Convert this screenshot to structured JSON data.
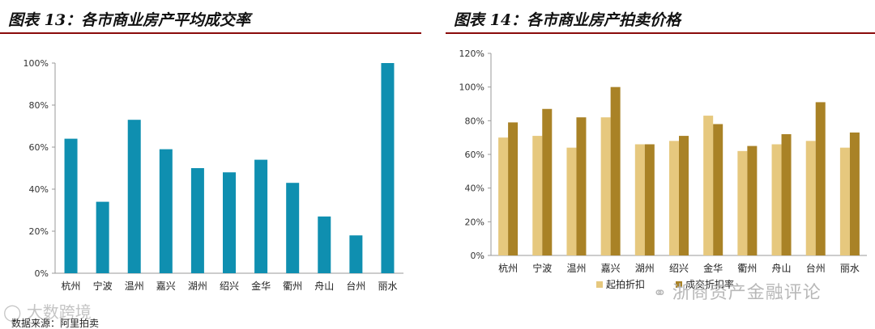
{
  "charts": {
    "left": {
      "title": "图表 13：各市商业房产平均成交率"
    },
    "right": {
      "title": "图表 14：各市商业房产拍卖价格"
    }
  },
  "colors": {
    "left_bar": "#0f8fb0",
    "start_price": "#e6c87e",
    "deal_price": "#a98226",
    "title_rule": "#8a0a0a"
  },
  "watermarks": {
    "left": "大数跨境",
    "right": "浙商资产金融评论"
  },
  "footer": {
    "source_note": "数据来源：阿里拍卖"
  },
  "chart_data": [
    {
      "type": "bar",
      "title": "图表 13：各市商业房产平均成交率",
      "categories": [
        "杭州",
        "宁波",
        "温州",
        "嘉兴",
        "湖州",
        "绍兴",
        "金华",
        "衢州",
        "舟山",
        "台州",
        "丽水"
      ],
      "values": [
        64,
        34,
        73,
        59,
        50,
        48,
        54,
        43,
        27,
        18,
        100
      ],
      "y_ticks": [
        "0%",
        "20%",
        "40%",
        "60%",
        "80%",
        "100%"
      ],
      "ylim": [
        0,
        100
      ],
      "grid": false,
      "legend": "none"
    },
    {
      "type": "bar",
      "title": "图表 14：各市商业房产拍卖价格",
      "categories": [
        "杭州",
        "宁波",
        "温州",
        "嘉兴",
        "湖州",
        "绍兴",
        "金华",
        "衢州",
        "舟山",
        "台州",
        "丽水"
      ],
      "series": [
        {
          "name": "起拍折扣",
          "values": [
            70,
            71,
            64,
            82,
            66,
            68,
            83,
            62,
            66,
            68,
            64
          ]
        },
        {
          "name": "成交折扣率",
          "values": [
            79,
            87,
            82,
            100,
            66,
            71,
            78,
            65,
            72,
            91,
            73
          ]
        }
      ],
      "y_ticks": [
        "0%",
        "20%",
        "40%",
        "60%",
        "80%",
        "100%",
        "120%"
      ],
      "ylim": [
        0,
        120
      ],
      "grid": false,
      "legend": "bottom"
    }
  ]
}
